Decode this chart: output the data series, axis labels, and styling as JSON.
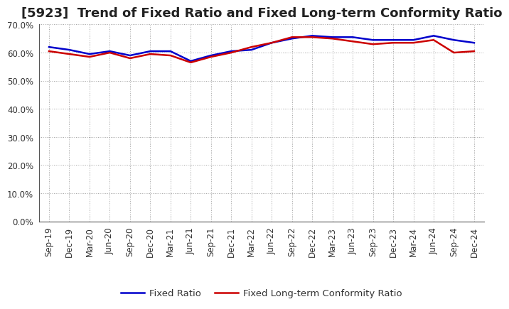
{
  "title": "[5923]  Trend of Fixed Ratio and Fixed Long-term Conformity Ratio",
  "x_labels": [
    "Sep-19",
    "Dec-19",
    "Mar-20",
    "Jun-20",
    "Sep-20",
    "Dec-20",
    "Mar-21",
    "Jun-21",
    "Sep-21",
    "Dec-21",
    "Mar-22",
    "Jun-22",
    "Sep-22",
    "Dec-22",
    "Mar-23",
    "Jun-23",
    "Sep-23",
    "Dec-23",
    "Mar-24",
    "Jun-24",
    "Sep-24",
    "Dec-24"
  ],
  "fixed_ratio": [
    62.0,
    61.0,
    59.5,
    60.5,
    59.0,
    60.5,
    60.5,
    57.0,
    59.0,
    60.5,
    61.0,
    63.5,
    65.0,
    66.0,
    65.5,
    65.5,
    64.5,
    64.5,
    64.5,
    66.0,
    64.5,
    63.5
  ],
  "fixed_lt_ratio": [
    60.5,
    59.5,
    58.5,
    60.0,
    58.0,
    59.5,
    59.0,
    56.5,
    58.5,
    60.0,
    62.0,
    63.5,
    65.5,
    65.5,
    65.0,
    64.0,
    63.0,
    63.5,
    63.5,
    64.5,
    60.0,
    60.5
  ],
  "fixed_ratio_color": "#0000cc",
  "fixed_lt_ratio_color": "#cc0000",
  "ylim": [
    0,
    70
  ],
  "yticks": [
    0,
    10,
    20,
    30,
    40,
    50,
    60,
    70
  ],
  "background_color": "#ffffff",
  "plot_bg_color": "#ffffff",
  "grid_color": "#999999",
  "legend_fixed_ratio": "Fixed Ratio",
  "legend_fixed_lt_ratio": "Fixed Long-term Conformity Ratio",
  "title_fontsize": 13,
  "tick_fontsize": 8.5,
  "legend_fontsize": 9.5,
  "line_width": 1.8
}
